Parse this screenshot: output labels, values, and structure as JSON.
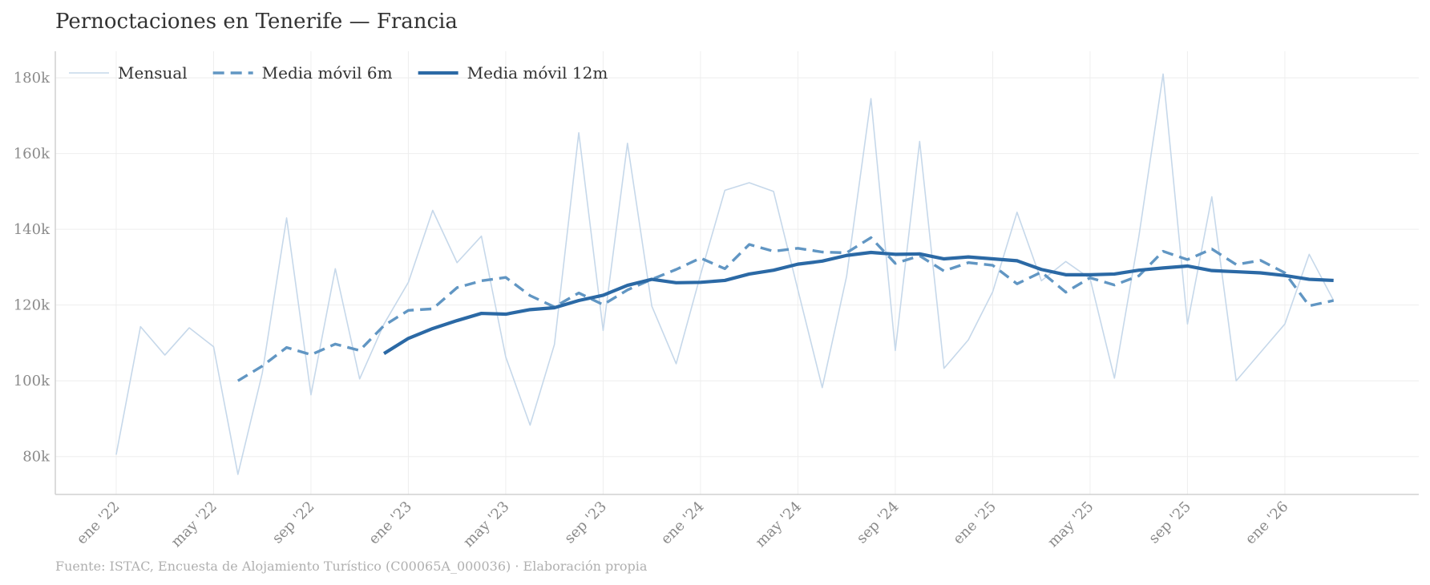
{
  "chart_data": {
    "type": "line",
    "title": "Pernoctaciones en Tenerife — Francia",
    "source": "Fuente: ISTAC, Encuesta de Alojamiento Turístico (C00065A_000036)  ·  Elaboración propia",
    "xlabel": "",
    "ylabel": "",
    "ylim": [
      70000,
      187000
    ],
    "grid": true,
    "legend_position": "top-left",
    "y_ticks": [
      {
        "value": 80000,
        "label": "80k"
      },
      {
        "value": 100000,
        "label": "100k"
      },
      {
        "value": 120000,
        "label": "120k"
      },
      {
        "value": 140000,
        "label": "140k"
      },
      {
        "value": 160000,
        "label": "160k"
      },
      {
        "value": 180000,
        "label": "180k"
      }
    ],
    "x_ticks": [
      {
        "index": 0,
        "label": "ene '22"
      },
      {
        "index": 4,
        "label": "may '22"
      },
      {
        "index": 8,
        "label": "sep '22"
      },
      {
        "index": 12,
        "label": "ene '23"
      },
      {
        "index": 16,
        "label": "may '23"
      },
      {
        "index": 20,
        "label": "sep '23"
      },
      {
        "index": 24,
        "label": "ene '24"
      },
      {
        "index": 28,
        "label": "may '24"
      },
      {
        "index": 32,
        "label": "sep '24"
      },
      {
        "index": 36,
        "label": "ene '25"
      },
      {
        "index": 40,
        "label": "may '25"
      },
      {
        "index": 44,
        "label": "sep '25"
      },
      {
        "index": 48,
        "label": "ene '26"
      }
    ],
    "x_index_min": -2.5,
    "x_index_max": 53.5,
    "series": [
      {
        "name": "Mensual",
        "color": "#c6d8ea",
        "style": "thin",
        "start_index": 0,
        "values": [
          80500,
          114300,
          106800,
          114000,
          109000,
          75300,
          102000,
          143000,
          96300,
          129600,
          100500,
          115000,
          126000,
          145000,
          131200,
          138200,
          106300,
          88300,
          109600,
          165500,
          113300,
          162700,
          119700,
          104500,
          128000,
          150300,
          152300,
          150000,
          124000,
          98200,
          127600,
          174500,
          108000,
          163200,
          103300,
          110800,
          123500,
          144500,
          126400,
          131500,
          127000,
          100700,
          138000,
          181000,
          115000,
          148600,
          100000,
          107500,
          115000,
          133400,
          121200
        ]
      },
      {
        "name": "Media móvil 6m",
        "color": "#6196c3",
        "style": "dashed",
        "start_index": 5,
        "values": [
          100000,
          103900,
          108800,
          106900,
          109700,
          108000,
          114600,
          118600,
          119000,
          124600,
          126400,
          127300,
          122500,
          119500,
          123200,
          120100,
          124000,
          126800,
          129400,
          132400,
          129600,
          136000,
          134200,
          135000,
          134000,
          133800,
          137800,
          131000,
          133000,
          129000,
          131200,
          130500,
          125600,
          128700,
          123400,
          127200,
          125300,
          127700,
          134200,
          132000,
          134800,
          130700,
          131800,
          128500,
          119800,
          121200
        ]
      },
      {
        "name": "Media móvil 12m",
        "color": "#2b69a5",
        "style": "thick",
        "start_index": 11,
        "values": [
          107200,
          111200,
          113800,
          115900,
          117800,
          117600,
          118800,
          119300,
          121200,
          122600,
          125200,
          126800,
          125900,
          126000,
          126500,
          128200,
          129200,
          130800,
          131600,
          133100,
          133900,
          133400,
          133500,
          132200,
          132700,
          132200,
          131700,
          129400,
          128000,
          128000,
          128200,
          129200,
          129800,
          130300,
          129100,
          128800,
          128500,
          127800,
          126800,
          126500
        ]
      }
    ]
  }
}
